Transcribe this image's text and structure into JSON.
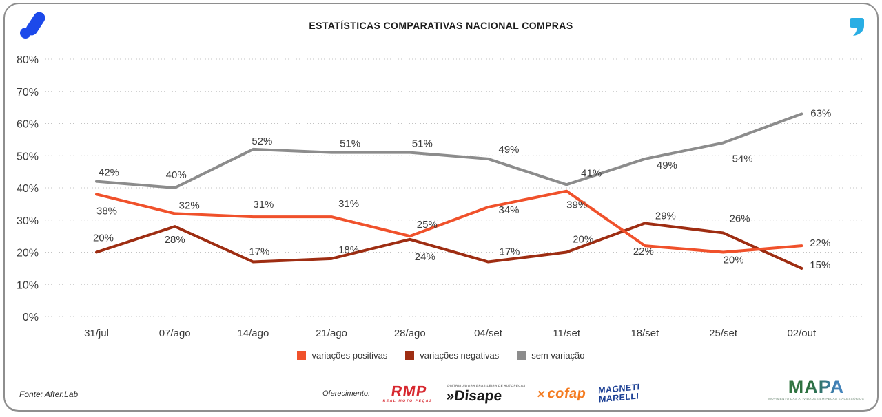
{
  "header": {
    "title": "ESTATÍSTICAS COMPARATIVAS NACIONAL COMPRAS"
  },
  "chart_data": {
    "type": "line",
    "title": "ESTATÍSTICAS COMPARATIVAS NACIONAL COMPRAS",
    "categories": [
      "31/jul",
      "07/ago",
      "14/ago",
      "21/ago",
      "28/ago",
      "04/set",
      "11/set",
      "18/set",
      "25/set",
      "02/out"
    ],
    "series": [
      {
        "id": "variacoes-positivas",
        "name": "variações positivas",
        "color": "#F0512B",
        "values": [
          38,
          32,
          31,
          31,
          25,
          34,
          39,
          22,
          20,
          22
        ],
        "label_offsets": [
          [
            15,
            29
          ],
          [
            21,
            -7
          ],
          [
            15,
            -13
          ],
          [
            25,
            -14
          ],
          [
            25,
            -12
          ],
          [
            30,
            9
          ],
          [
            15,
            25
          ],
          [
            -2,
            13
          ],
          [
            15,
            16
          ],
          [
            27,
            1
          ]
        ]
      },
      {
        "id": "variacoes-negativas",
        "name": "variações negativas",
        "color": "#9E2D12",
        "values": [
          20,
          28,
          17,
          18,
          24,
          17,
          20,
          29,
          26,
          15
        ],
        "label_offsets": [
          [
            10,
            -16
          ],
          [
            0,
            24
          ],
          [
            9,
            -10
          ],
          [
            25,
            -8
          ],
          [
            22,
            30
          ],
          [
            31,
            -10
          ],
          [
            24,
            -14
          ],
          [
            30,
            -6
          ],
          [
            24,
            -16
          ],
          [
            27,
            0
          ]
        ]
      },
      {
        "id": "sem-variacao",
        "name": "sem variação",
        "color": "#8C8C8C",
        "values": [
          42,
          40,
          52,
          51,
          51,
          49,
          41,
          49,
          54,
          63
        ],
        "label_offsets": [
          [
            18,
            -8
          ],
          [
            2,
            -14
          ],
          [
            13,
            -7
          ],
          [
            27,
            -8
          ],
          [
            18,
            -8
          ],
          [
            30,
            -9
          ],
          [
            36,
            -12
          ],
          [
            32,
            14
          ],
          [
            28,
            28
          ],
          [
            28,
            4
          ]
        ]
      }
    ],
    "ylim": [
      0,
      80
    ],
    "ytick_step": 10,
    "ytick_suffix": "%",
    "value_suffix": "%",
    "grid": "horizontal dotted",
    "legend_position": "bottom-center"
  },
  "footer": {
    "source": "Fonte: After.Lab",
    "sponsor_label": "Oferecimento:",
    "sponsors": {
      "rmp": {
        "name": "RMP",
        "subtext": "REAL MOTO PEÇAS",
        "color": "#D7282F"
      },
      "disape": {
        "prefix": "»",
        "name": "Disape",
        "subtext": "DISTRIBUIDORA BRASILEIRA DE AUTOPEÇAS",
        "color": "#1A1A1A"
      },
      "cofap": {
        "mark": "✕",
        "name": "cofap",
        "color": "#F47B20"
      },
      "magneti": {
        "line1": "MAGNETI",
        "line2": "MARELLI",
        "color": "#1B3F94"
      }
    },
    "mapa": {
      "name": "MAPA",
      "tagline": "MOVIMENTO DAS ATIVIDADES EM PEÇAS E ACESSÓRIOS"
    }
  },
  "colors": {
    "brand_blue": "#1C49EA",
    "quote_cyan": "#29AEE4",
    "positive_orange": "#F0512B",
    "negative_darkred": "#9E2D12",
    "neutral_gray": "#8C8C8C"
  }
}
